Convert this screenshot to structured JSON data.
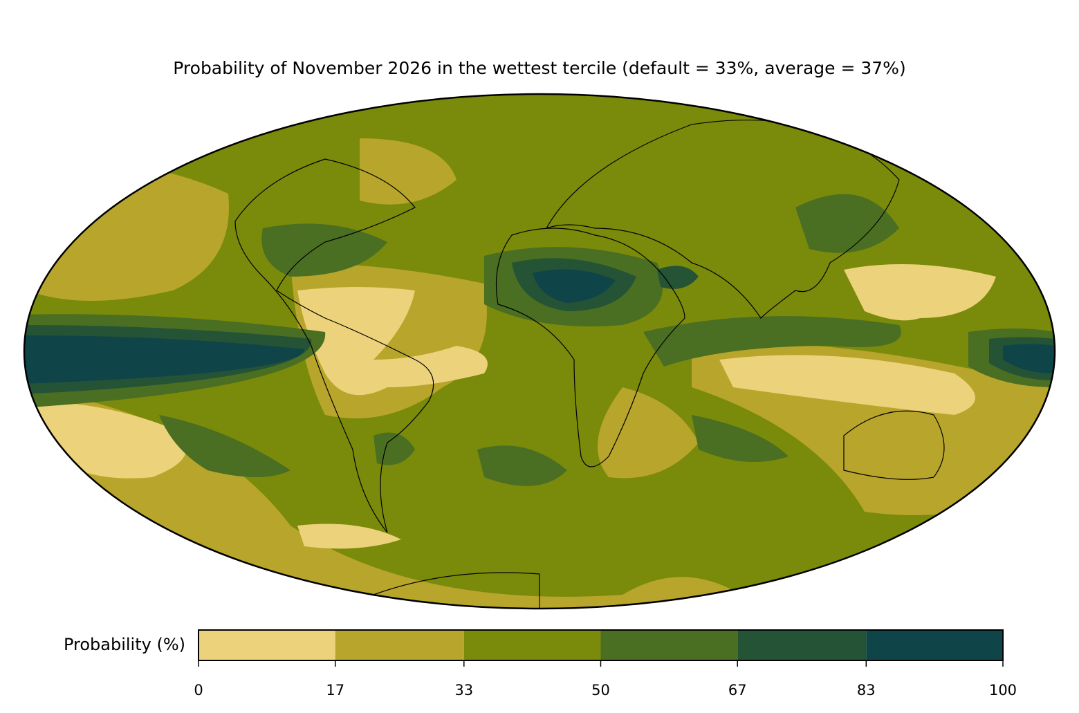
{
  "title": "Probability of November 2026 in the wettest tercile (default = 33%, average = 37%)",
  "colorbar": {
    "label": "Probability (%)",
    "ticks": [
      0,
      17,
      33,
      50,
      67,
      83,
      100
    ],
    "colors": [
      "#ecd27a",
      "#b8a52b",
      "#7a8a0a",
      "#4a6e22",
      "#255335",
      "#0f4548"
    ]
  }
}
